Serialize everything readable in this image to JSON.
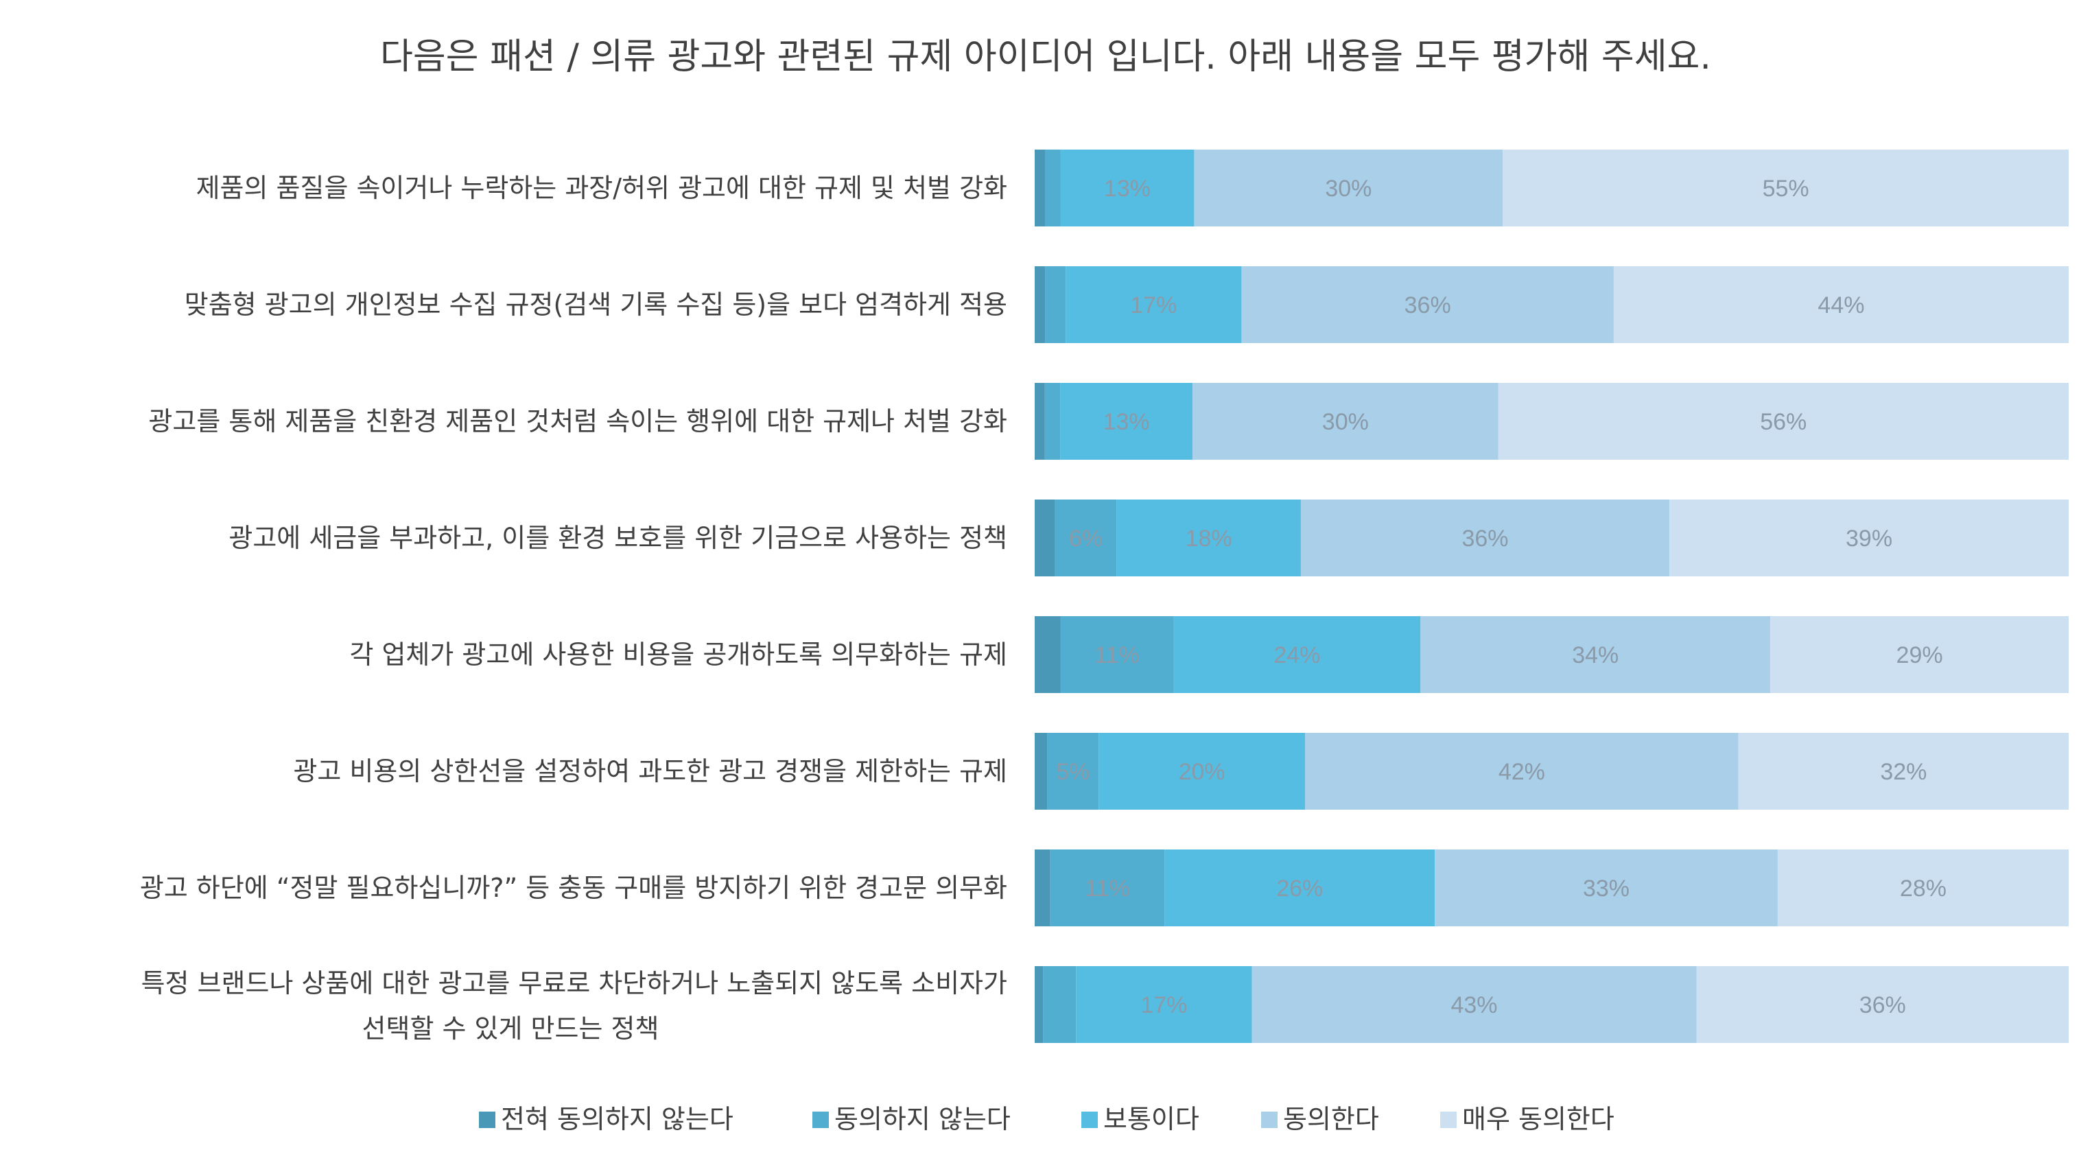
{
  "chart_data": {
    "type": "bar",
    "orientation": "horizontal",
    "stacked": true,
    "title": "다음은 패션 / 의류 광고와 관련된 규제 아이디어 입니다. 아래 내용을 모두 평가해 주세요.",
    "categories": [
      [
        "제품의 품질을 속이거나 누락하는 과장/허위 광고에 대한 규제 및 처벌 강화"
      ],
      [
        "맞춤형 광고의 개인정보 수집 규정(검색 기록 수집 등)을 보다 엄격하게 적용"
      ],
      [
        "광고를 통해 제품을 친환경 제품인 것처럼 속이는 행위에 대한 규제나 처벌 강화"
      ],
      [
        "광고에 세금을 부과하고, 이를 환경 보호를 위한 기금으로 사용하는 정책"
      ],
      [
        "각 업체가 광고에 사용한 비용을 공개하도록 의무화하는 규제"
      ],
      [
        "광고 비용의 상한선을 설정하여 과도한 광고 경쟁을 제한하는 규제"
      ],
      [
        "광고 하단에 “정말 필요하십니까?” 등 충동 구매를 방지하기 위한 경고문 의무화"
      ],
      [
        "특정 브랜드나 상품에 대한 광고를 무료로 차단하거나 노출되지 않도록 소비자가",
        "선택할 수 있게 만드는 정책"
      ]
    ],
    "series": [
      {
        "name": "전혀 동의하지 않는다",
        "color": "#4a98b8",
        "values": [
          1,
          1,
          1,
          2,
          2.5,
          1.2,
          1.5,
          0.8
        ]
      },
      {
        "name": "동의하지 않는다",
        "color": "#52aed0",
        "values": [
          1.5,
          2,
          1.5,
          6,
          11,
          5,
          11,
          3.2
        ]
      },
      {
        "name": "보통이다",
        "color": "#56bde2",
        "values": [
          13,
          17,
          13,
          18,
          24,
          20,
          26,
          17
        ]
      },
      {
        "name": "동의한다",
        "color": "#a9cfe9",
        "values": [
          30,
          36,
          30,
          36,
          34,
          42,
          33,
          43
        ]
      },
      {
        "name": "매우 동의한다",
        "color": "#cce0f2",
        "values": [
          55,
          44,
          56,
          39,
          29,
          32,
          28,
          36
        ]
      }
    ],
    "data_labels": [
      [
        "",
        "",
        "13%",
        "30%",
        "55%"
      ],
      [
        "",
        "",
        "17%",
        "36%",
        "44%"
      ],
      [
        "",
        "",
        "13%",
        "30%",
        "56%"
      ],
      [
        "",
        "6%",
        "18%",
        "36%",
        "39%"
      ],
      [
        "",
        "11%",
        "24%",
        "34%",
        "29%"
      ],
      [
        "",
        "5%",
        "20%",
        "42%",
        "32%"
      ],
      [
        "",
        "11%",
        "26%",
        "33%",
        "28%"
      ],
      [
        "",
        "",
        "17%",
        "43%",
        "36%"
      ]
    ],
    "label_color": "#8a9aa8",
    "legend_position": "bottom",
    "grid": false
  }
}
